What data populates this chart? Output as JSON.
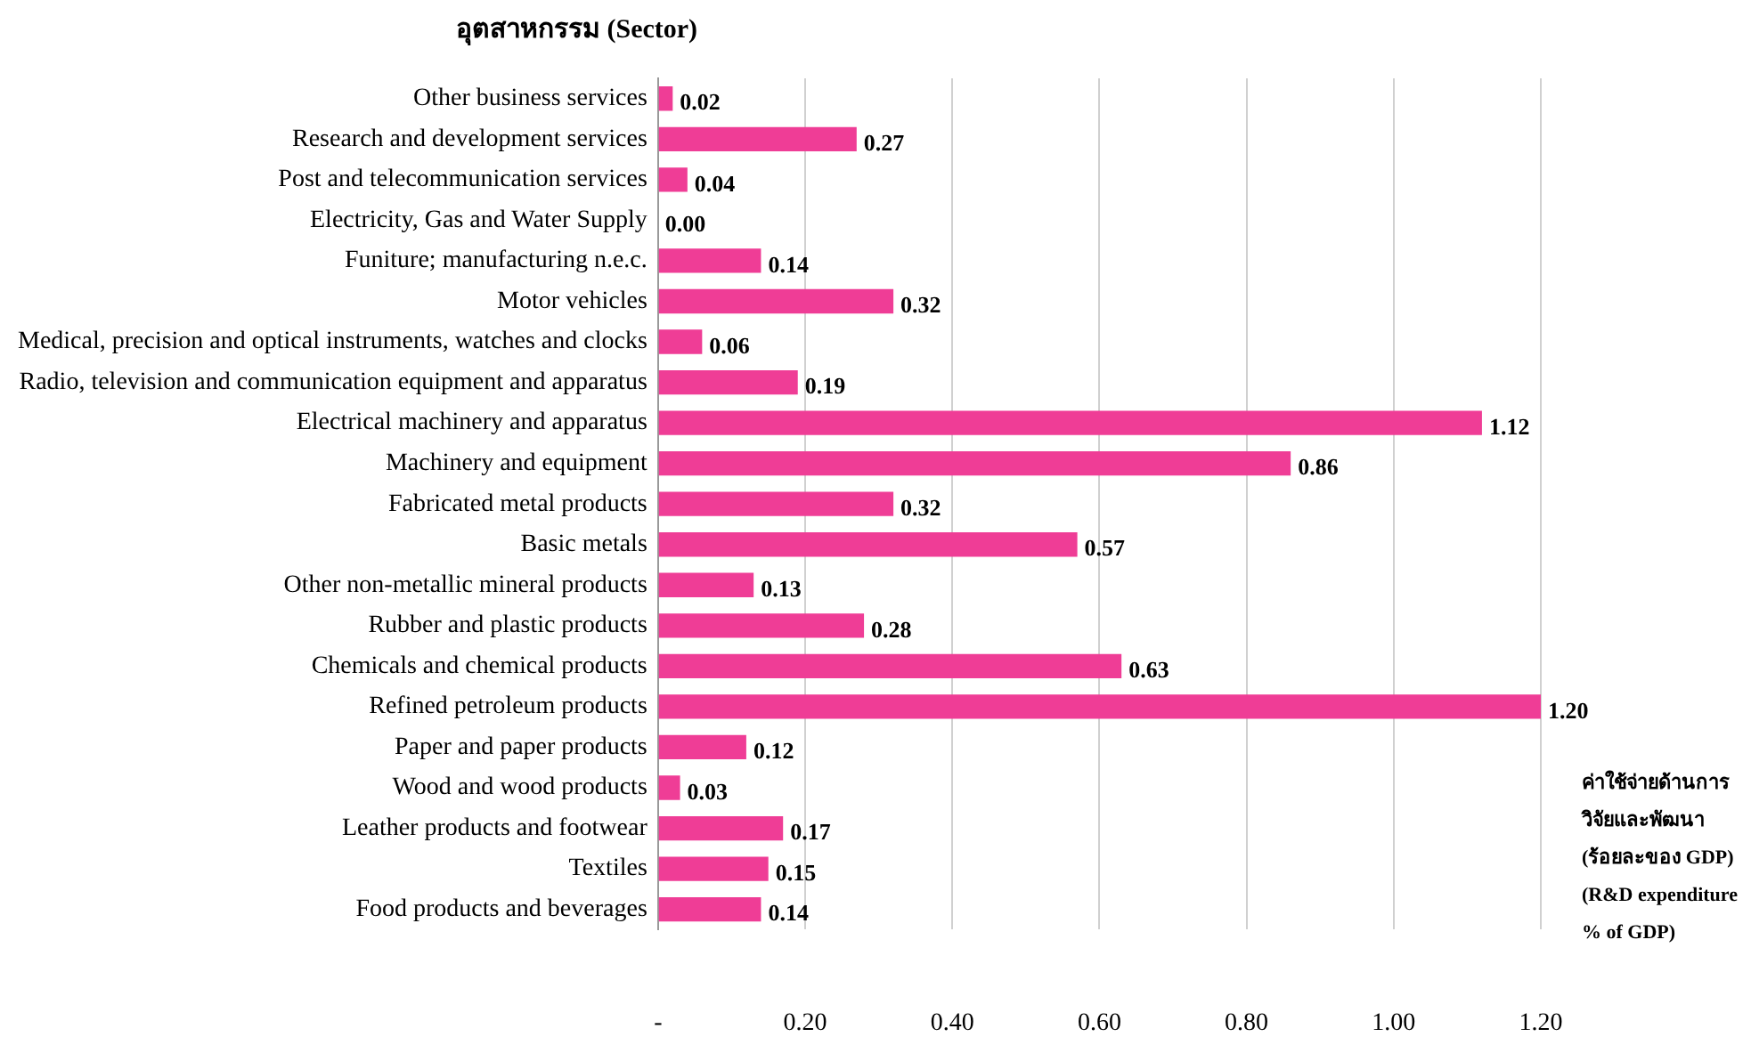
{
  "chart_data": {
    "type": "bar",
    "orientation": "horizontal",
    "title": "อุตสาหกรรม (Sector)",
    "xlabel": "ค่าใช้จ่ายด้านการวิจัยและพัฒนา (ร้อยละของ GDP) (R&D expenditure % of GDP)",
    "categories": [
      "Other business services",
      "Research and development services",
      "Post and telecommunication services",
      "Electricity, Gas and Water Supply",
      "Funiture; manufacturing n.e.c.",
      "Motor vehicles",
      "Medical, precision and optical instruments, watches and clocks",
      "Radio, television and communication equipment and apparatus",
      "Electrical machinery and apparatus",
      "Machinery and equipment",
      "Fabricated metal products",
      "Basic metals",
      "Other non-metallic mineral products",
      "Rubber and plastic products",
      "Chemicals and chemical products",
      "Refined petroleum products",
      "Paper and paper products",
      "Wood and wood products",
      "Leather products and footwear",
      "Textiles",
      "Food products and beverages"
    ],
    "values": [
      0.02,
      0.27,
      0.04,
      0.0,
      0.14,
      0.32,
      0.06,
      0.19,
      1.12,
      0.86,
      0.32,
      0.57,
      0.13,
      0.28,
      0.63,
      1.2,
      0.12,
      0.03,
      0.17,
      0.15,
      0.14
    ],
    "color": "#ef3d96",
    "xlim": [
      0,
      1.2
    ],
    "xticks": [
      {
        "value": 0,
        "label": "-"
      },
      {
        "value": 0.2,
        "label": "0.20"
      },
      {
        "value": 0.4,
        "label": "0.40"
      },
      {
        "value": 0.6,
        "label": "0.60"
      },
      {
        "value": 0.8,
        "label": "0.80"
      },
      {
        "value": 1.0,
        "label": "1.00"
      },
      {
        "value": 1.2,
        "label": "1.20"
      }
    ],
    "value_labels": [
      "0.02",
      "0.27",
      "0.04",
      "0.00",
      "0.14",
      "0.32",
      "0.06",
      "0.19",
      "1.12",
      "0.86",
      "0.32",
      "0.57",
      "0.13",
      "0.28",
      "0.63",
      "1.20",
      "0.12",
      "0.03",
      "0.17",
      "0.15",
      "0.14"
    ],
    "grid": "x",
    "legend": false
  }
}
